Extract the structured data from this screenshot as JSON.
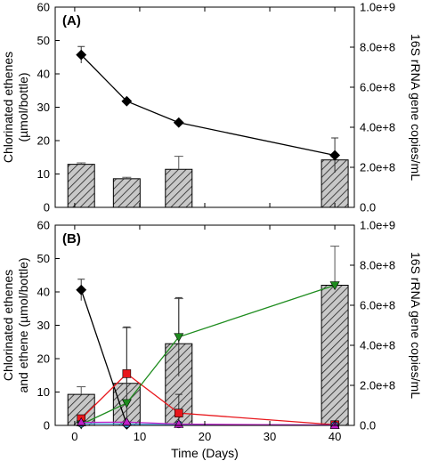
{
  "chart_data": [
    {
      "type": "bar+line",
      "panel_label": "(A)",
      "ylabel_left_lines": [
        "Chlorinated ethenes",
        "(µmol/bottle)"
      ],
      "ylabel_right": "16S rRNA gene copies/mL",
      "xlabel": "",
      "xlim": [
        -3,
        43
      ],
      "ylim_left": [
        0,
        60
      ],
      "ylim_right": [
        0,
        1000000000
      ],
      "x_ticks": [
        0,
        10,
        20,
        30,
        40
      ],
      "x_tick_labels_visible": false,
      "y_left_ticks": [
        "0",
        "10",
        "20",
        "30",
        "40",
        "50",
        "60"
      ],
      "y_right_ticks": [
        "0.0",
        "2.0e+8",
        "4.0e+8",
        "6.0e+8",
        "8.0e+8",
        "1.0e+9"
      ],
      "bars": {
        "axis": "right",
        "x": [
          1,
          8,
          16,
          40
        ],
        "values": [
          215000000,
          143000000,
          190000000,
          237000000
        ],
        "errors": [
          7000000,
          7000000,
          65000000,
          0
        ],
        "fill": "hatched-gray"
      },
      "series": [
        {
          "marker": "diamond",
          "color": "#000000",
          "x": [
            1,
            8,
            16,
            40
          ],
          "y": [
            45.7,
            31.8,
            25.4,
            15.6
          ],
          "errors": [
            2.5,
            0,
            0,
            5.2
          ]
        }
      ],
      "grid": false
    },
    {
      "type": "bar+line",
      "panel_label": "(B)",
      "ylabel_left_lines": [
        "Chlorinated ethenes",
        "and ethene (µmol/bottle)"
      ],
      "ylabel_right": "16S rRNA gene copies/mL",
      "xlabel": "Time (Days)",
      "xlim": [
        -3,
        43
      ],
      "ylim_left": [
        0,
        60
      ],
      "ylim_right": [
        0,
        1000000000
      ],
      "x_ticks": [
        "0",
        "10",
        "20",
        "30",
        "40"
      ],
      "y_left_ticks": [
        "0",
        "10",
        "20",
        "30",
        "40",
        "50",
        "60"
      ],
      "y_right_ticks": [
        "0.0",
        "2.0e+8",
        "4.0e+8",
        "6.0e+8",
        "8.0e+8",
        "1.0e+9"
      ],
      "bars": {
        "axis": "right",
        "x": [
          1,
          8,
          16,
          40
        ],
        "values": [
          155000000,
          210000000,
          408000000,
          700000000
        ],
        "errors": [
          38000000,
          278000000,
          225000000,
          195000000
        ],
        "fill": "hatched-gray"
      },
      "series": [
        {
          "marker": "diamond",
          "color": "#000000",
          "x": [
            1,
            8
          ],
          "y": [
            40.6,
            0.3
          ],
          "errors": [
            3.2,
            0
          ]
        },
        {
          "marker": "square",
          "color": "#e8171c",
          "x": [
            1,
            8,
            16,
            40
          ],
          "y": [
            2.0,
            15.5,
            3.7,
            0.2
          ],
          "errors": [
            0,
            14.0,
            5.6,
            0
          ]
        },
        {
          "marker": "triangle-down",
          "color": "#1e8c1e",
          "x": [
            1,
            8,
            16,
            40
          ],
          "y": [
            0.3,
            6.7,
            26.5,
            42.0
          ],
          "errors": [
            0,
            0,
            11.8,
            0
          ]
        },
        {
          "marker": "circle",
          "color": "#4aa3e0",
          "x": [
            1,
            8,
            16,
            40
          ],
          "y": [
            0.5,
            0.4,
            0.3,
            0.1
          ],
          "errors": [
            0,
            0,
            0,
            0
          ]
        },
        {
          "marker": "triangle-up",
          "color": "#c020c8",
          "x": [
            1,
            8,
            16,
            40
          ],
          "y": [
            0.9,
            1.0,
            0.4,
            0.1
          ],
          "errors": [
            0,
            0,
            0,
            0
          ]
        }
      ],
      "grid": false
    }
  ]
}
